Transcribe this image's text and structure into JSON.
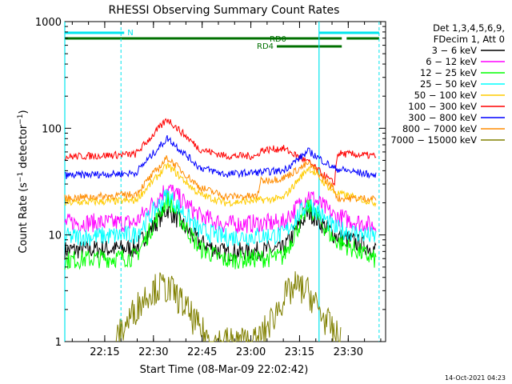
{
  "chart_data": {
    "type": "line",
    "title": "RHESSI Observing Summary Count Rates",
    "xlabel": "Start Time (08-Mar-09 22:02:42)",
    "ylabel": "Count Rate (s⁻¹ detector⁻¹)",
    "ylabel_main": "Count Rate (s",
    "ylabel_mid": " detector",
    "ylabel_end": ")",
    "ylabel_sup": "−1",
    "y_scale": "log",
    "ylim": [
      1,
      1000
    ],
    "xlim": [
      "22:02:42",
      "23:41:30"
    ],
    "x_ticks": [
      "22:15",
      "22:30",
      "22:45",
      "23:00",
      "23:15",
      "23:30"
    ],
    "y_ticks": [
      "1",
      "10",
      "100",
      "1000"
    ],
    "grid": false,
    "legend_header": [
      "Det 1,3,4,5,6,9,",
      "FDecim 1, Att 0"
    ],
    "legend_placement": "right",
    "timestamp": "14-Oct-2021 04:23",
    "flags": [
      {
        "label": "N",
        "color": "#00e5ee",
        "segments": [
          [
            "22:02:42",
            "22:21:00"
          ],
          [
            "23:21:00",
            "23:39:30"
          ]
        ]
      },
      {
        "label": "RD0",
        "color": "#007000",
        "segments": [
          [
            "22:02:42",
            "23:28:00"
          ],
          [
            "23:29:30",
            "23:39:30"
          ]
        ]
      },
      {
        "label": "RD4",
        "color": "#007000",
        "segments": [
          [
            "23:08:00",
            "23:28:00"
          ]
        ]
      }
    ],
    "markers": {
      "solid": [
        "22:02:42",
        "23:21:00"
      ],
      "dashed": [
        "22:20:00",
        "23:39:30"
      ]
    },
    "series": [
      {
        "name": "3 − 6 keV",
        "color": "#000000",
        "values": [
          [
            0,
            7.2
          ],
          [
            22,
            7.5
          ],
          [
            32,
            17.5
          ],
          [
            42,
            8.5
          ],
          [
            50,
            6.8
          ],
          [
            68,
            7.3
          ],
          [
            76,
            16.5
          ],
          [
            84,
            10
          ],
          [
            97,
            7.3
          ]
        ]
      },
      {
        "name": "6 − 12 keV",
        "color": "#ff00ff",
        "values": [
          [
            0,
            13
          ],
          [
            22,
            13
          ],
          [
            32,
            28
          ],
          [
            42,
            15
          ],
          [
            50,
            12.5
          ],
          [
            68,
            13
          ],
          [
            76,
            24
          ],
          [
            84,
            15
          ],
          [
            97,
            12
          ]
        ]
      },
      {
        "name": "12 − 25 keV",
        "color": "#00ff00",
        "values": [
          [
            0,
            5.8
          ],
          [
            22,
            6.2
          ],
          [
            32,
            21.5
          ],
          [
            42,
            7.5
          ],
          [
            50,
            5.8
          ],
          [
            68,
            6.2
          ],
          [
            76,
            18.5
          ],
          [
            84,
            9
          ],
          [
            97,
            5.8
          ]
        ]
      },
      {
        "name": "25 − 50 keV",
        "color": "#00ffff",
        "values": [
          [
            0,
            9.5
          ],
          [
            22,
            10
          ],
          [
            32,
            24
          ],
          [
            42,
            11
          ],
          [
            50,
            9.5
          ],
          [
            68,
            10
          ],
          [
            76,
            20
          ],
          [
            84,
            11.5
          ],
          [
            97,
            9.5
          ]
        ]
      },
      {
        "name": "50 − 100 keV",
        "color": "#ffcc00",
        "values": [
          [
            0,
            20
          ],
          [
            22,
            21
          ],
          [
            32,
            45
          ],
          [
            42,
            24
          ],
          [
            50,
            20
          ],
          [
            68,
            22
          ],
          [
            76,
            43
          ],
          [
            84,
            25
          ],
          [
            97,
            20
          ]
        ]
      },
      {
        "name": "100 − 300 keV",
        "color": "#ff0000",
        "values": [
          [
            0,
            54
          ],
          [
            22,
            57
          ],
          [
            32,
            122
          ],
          [
            42,
            64
          ],
          [
            50,
            55
          ],
          [
            60,
            55
          ],
          [
            61,
            62
          ],
          [
            68,
            65
          ],
          [
            76,
            48
          ],
          [
            84,
            30
          ],
          [
            85,
            58
          ],
          [
            97,
            55
          ]
        ]
      },
      {
        "name": "300 − 800 keV",
        "color": "#0000ff",
        "values": [
          [
            0,
            36
          ],
          [
            22,
            38
          ],
          [
            32,
            81
          ],
          [
            42,
            43
          ],
          [
            50,
            37
          ],
          [
            68,
            40
          ],
          [
            76,
            61
          ],
          [
            84,
            42
          ],
          [
            97,
            36
          ]
        ]
      },
      {
        "name": "800 − 7000 keV",
        "color": "#ff8c00",
        "values": [
          [
            0,
            22
          ],
          [
            22,
            24
          ],
          [
            32,
            53
          ],
          [
            42,
            28
          ],
          [
            50,
            23
          ],
          [
            60,
            23
          ],
          [
            61,
            32
          ],
          [
            68,
            34
          ],
          [
            76,
            47
          ],
          [
            84,
            27
          ],
          [
            85,
            22
          ],
          [
            97,
            22
          ]
        ]
      },
      {
        "name": "7000 − 15000 keV",
        "color": "#808000",
        "values": [
          [
            16,
            1
          ],
          [
            18,
            1.3
          ],
          [
            22,
            2
          ],
          [
            26,
            2.9
          ],
          [
            30,
            3.3
          ],
          [
            34,
            2.9
          ],
          [
            38,
            2
          ],
          [
            42,
            1.3
          ],
          [
            46,
            1
          ],
          [
            60,
            1
          ],
          [
            64,
            1.5
          ],
          [
            68,
            2.5
          ],
          [
            72,
            3.3
          ],
          [
            76,
            2.9
          ],
          [
            80,
            1.8
          ],
          [
            84,
            1.2
          ],
          [
            86,
            1
          ]
        ]
      }
    ]
  }
}
